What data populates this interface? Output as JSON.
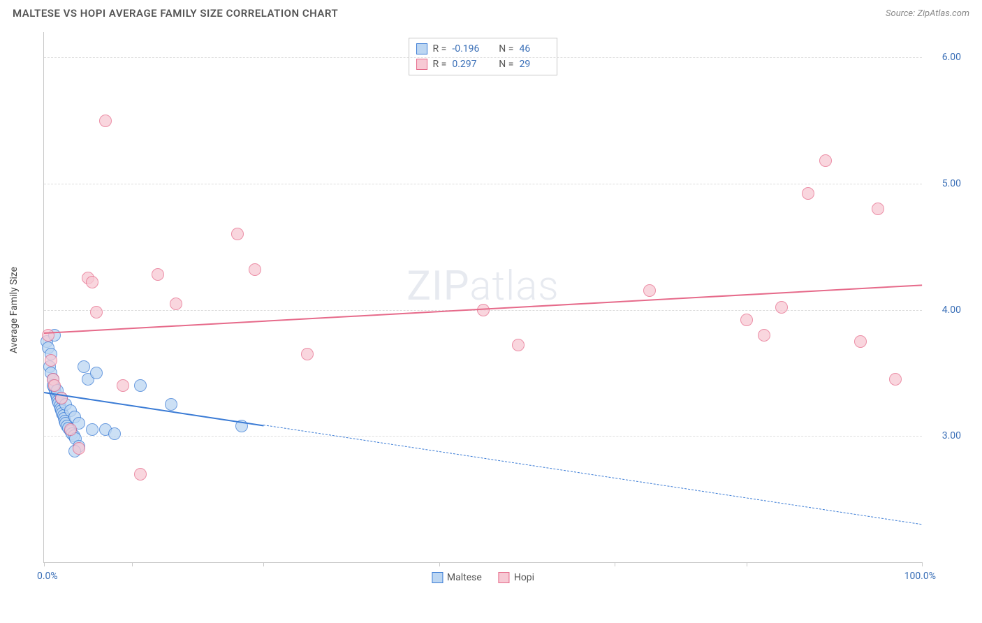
{
  "header": {
    "title": "MALTESE VS HOPI AVERAGE FAMILY SIZE CORRELATION CHART",
    "source_prefix": "Source: ",
    "source_name": "ZipAtlas.com"
  },
  "watermark": {
    "bold": "ZIP",
    "light": "atlas"
  },
  "chart": {
    "type": "scatter",
    "ylabel": "Average Family Size",
    "xlim": [
      0,
      100
    ],
    "ylim": [
      2.0,
      6.2
    ],
    "x_label_min": "0.0%",
    "x_label_max": "100.0%",
    "xtick_positions": [
      0,
      10,
      25,
      45,
      65,
      80,
      100
    ],
    "yticks": [
      3.0,
      4.0,
      5.0,
      6.0
    ],
    "ytick_labels": [
      "3.00",
      "4.00",
      "5.00",
      "6.00"
    ],
    "grid_color": "#dcdcdc",
    "axis_color": "#c8c8c8",
    "tick_label_color": "#3a6fb7",
    "background_color": "#ffffff",
    "point_radius": 9,
    "point_border_width": 1.5,
    "trend_line_width": 2,
    "series": [
      {
        "name": "Maltese",
        "fill_color": "#bcd6f2",
        "stroke_color": "#3a7bd5",
        "line_color": "#3a7bd5",
        "R": "-0.196",
        "N": "46",
        "trend": {
          "y_at_xmin": 3.35,
          "y_at_xmax": 2.3,
          "solid_until_x": 25
        },
        "points": [
          {
            "x": 0.3,
            "y": 3.75
          },
          {
            "x": 0.5,
            "y": 3.7
          },
          {
            "x": 0.6,
            "y": 3.55
          },
          {
            "x": 0.8,
            "y": 3.5
          },
          {
            "x": 1.0,
            "y": 3.45
          },
          {
            "x": 1.1,
            "y": 3.4
          },
          {
            "x": 1.2,
            "y": 3.38
          },
          {
            "x": 1.3,
            "y": 3.35
          },
          {
            "x": 1.4,
            "y": 3.32
          },
          {
            "x": 1.5,
            "y": 3.3
          },
          {
            "x": 1.6,
            "y": 3.28
          },
          {
            "x": 1.7,
            "y": 3.26
          },
          {
            "x": 1.8,
            "y": 3.24
          },
          {
            "x": 1.9,
            "y": 3.22
          },
          {
            "x": 2.0,
            "y": 3.2
          },
          {
            "x": 2.1,
            "y": 3.18
          },
          {
            "x": 2.2,
            "y": 3.16
          },
          {
            "x": 2.3,
            "y": 3.14
          },
          {
            "x": 2.4,
            "y": 3.12
          },
          {
            "x": 2.5,
            "y": 3.1
          },
          {
            "x": 2.6,
            "y": 3.08
          },
          {
            "x": 2.8,
            "y": 3.06
          },
          {
            "x": 3.0,
            "y": 3.04
          },
          {
            "x": 3.2,
            "y": 3.02
          },
          {
            "x": 3.4,
            "y": 3.0
          },
          {
            "x": 3.6,
            "y": 2.98
          },
          {
            "x": 1.0,
            "y": 3.4
          },
          {
            "x": 1.5,
            "y": 3.36
          },
          {
            "x": 2.0,
            "y": 3.3
          },
          {
            "x": 2.5,
            "y": 3.25
          },
          {
            "x": 3.0,
            "y": 3.2
          },
          {
            "x": 3.5,
            "y": 3.15
          },
          {
            "x": 4.0,
            "y": 3.1
          },
          {
            "x": 4.5,
            "y": 3.55
          },
          {
            "x": 5.0,
            "y": 3.45
          },
          {
            "x": 5.5,
            "y": 3.05
          },
          {
            "x": 6.0,
            "y": 3.5
          },
          {
            "x": 7.0,
            "y": 3.05
          },
          {
            "x": 8.0,
            "y": 3.02
          },
          {
            "x": 4.0,
            "y": 2.92
          },
          {
            "x": 3.5,
            "y": 2.88
          },
          {
            "x": 14.5,
            "y": 3.25
          },
          {
            "x": 11.0,
            "y": 3.4
          },
          {
            "x": 22.5,
            "y": 3.08
          },
          {
            "x": 1.2,
            "y": 3.8
          },
          {
            "x": 0.8,
            "y": 3.65
          }
        ]
      },
      {
        "name": "Hopi",
        "fill_color": "#f7c9d4",
        "stroke_color": "#e66a8a",
        "line_color": "#e66a8a",
        "R": "0.297",
        "N": "29",
        "trend": {
          "y_at_xmin": 3.82,
          "y_at_xmax": 4.2,
          "solid_until_x": 100
        },
        "points": [
          {
            "x": 0.5,
            "y": 3.8
          },
          {
            "x": 0.8,
            "y": 3.6
          },
          {
            "x": 1.0,
            "y": 3.45
          },
          {
            "x": 1.2,
            "y": 3.4
          },
          {
            "x": 2.0,
            "y": 3.3
          },
          {
            "x": 3.0,
            "y": 3.05
          },
          {
            "x": 4.0,
            "y": 2.9
          },
          {
            "x": 5.0,
            "y": 4.25
          },
          {
            "x": 5.5,
            "y": 4.22
          },
          {
            "x": 6.0,
            "y": 3.98
          },
          {
            "x": 7.0,
            "y": 5.5
          },
          {
            "x": 9.0,
            "y": 3.4
          },
          {
            "x": 11.0,
            "y": 2.7
          },
          {
            "x": 13.0,
            "y": 4.28
          },
          {
            "x": 15.0,
            "y": 4.05
          },
          {
            "x": 22.0,
            "y": 4.6
          },
          {
            "x": 24.0,
            "y": 4.32
          },
          {
            "x": 30.0,
            "y": 3.65
          },
          {
            "x": 54.0,
            "y": 3.72
          },
          {
            "x": 69.0,
            "y": 4.15
          },
          {
            "x": 80.0,
            "y": 3.92
          },
          {
            "x": 82.0,
            "y": 3.8
          },
          {
            "x": 84.0,
            "y": 4.02
          },
          {
            "x": 87.0,
            "y": 4.92
          },
          {
            "x": 89.0,
            "y": 5.18
          },
          {
            "x": 93.0,
            "y": 3.75
          },
          {
            "x": 95.0,
            "y": 4.8
          },
          {
            "x": 97.0,
            "y": 3.45
          },
          {
            "x": 50.0,
            "y": 4.0
          }
        ]
      }
    ],
    "legend_bottom": [
      {
        "label": "Maltese",
        "swatch_fill": "#bcd6f2",
        "swatch_stroke": "#3a7bd5"
      },
      {
        "label": "Hopi",
        "swatch_fill": "#f7c9d4",
        "swatch_stroke": "#e66a8a"
      }
    ]
  }
}
